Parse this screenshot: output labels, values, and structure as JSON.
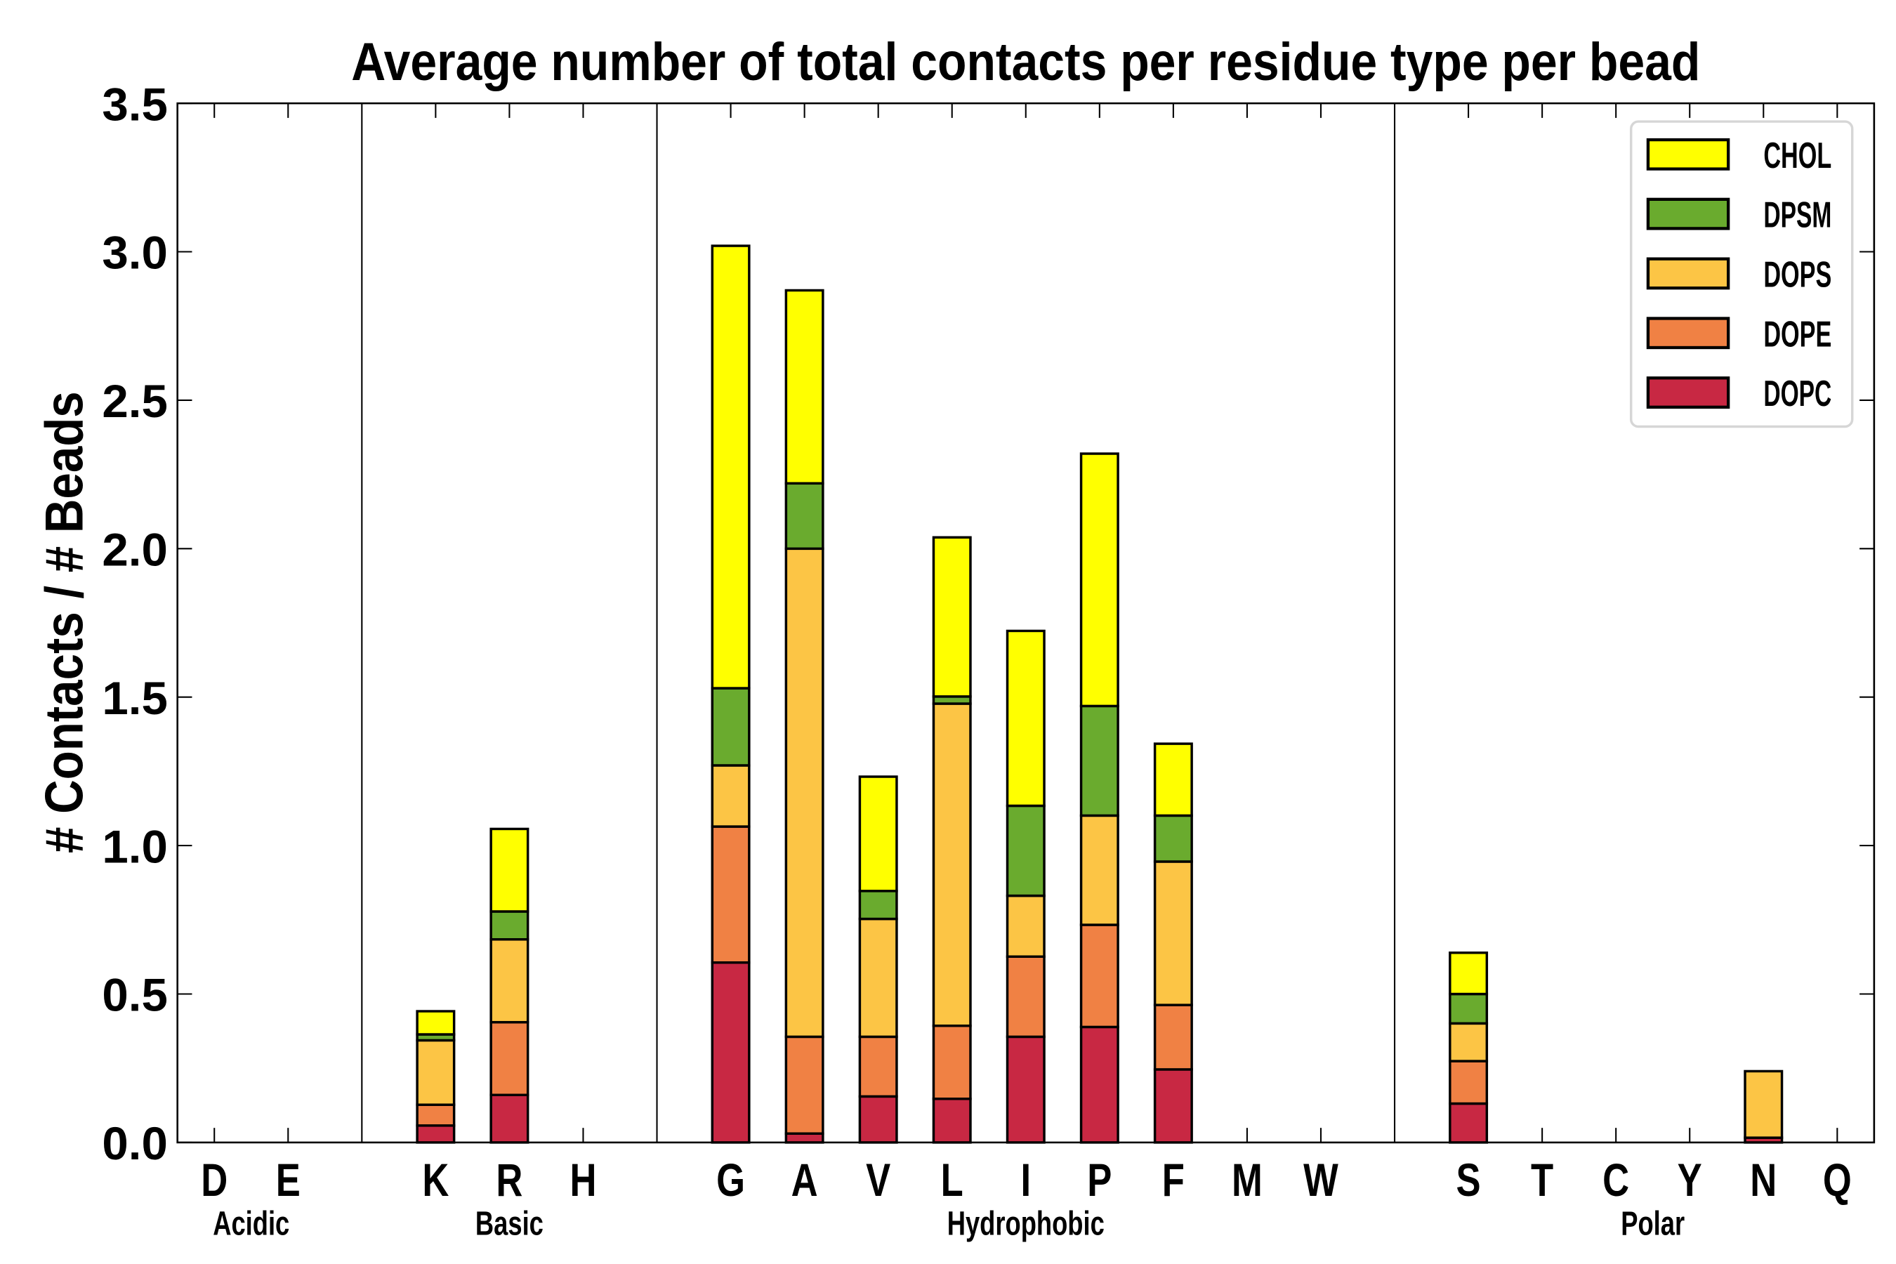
{
  "chart_data": {
    "type": "bar",
    "stacked": true,
    "title": "Average number of total contacts per residue type per bead",
    "xlabel": "",
    "ylabel": "# Contacts / # Beads",
    "ylim": [
      0,
      3.5
    ],
    "yticks": [
      "0.0",
      "0.5",
      "1.0",
      "1.5",
      "2.0",
      "2.5",
      "3.0",
      "3.5"
    ],
    "grid": false,
    "legend_position": "top-right",
    "categories": [
      "D",
      "E",
      "K",
      "R",
      "H",
      "G",
      "A",
      "V",
      "L",
      "I",
      "P",
      "F",
      "M",
      "W",
      "S",
      "T",
      "C",
      "Y",
      "N",
      "Q"
    ],
    "groups": [
      {
        "label": "Acidic",
        "members": [
          "D",
          "E"
        ]
      },
      {
        "label": "Basic",
        "members": [
          "K",
          "R",
          "H"
        ]
      },
      {
        "label": "Hydrophobic",
        "members": [
          "G",
          "A",
          "V",
          "L",
          "I",
          "P",
          "F",
          "M",
          "W"
        ]
      },
      {
        "label": "Polar",
        "members": [
          "S",
          "T",
          "C",
          "Y",
          "N",
          "Q"
        ]
      }
    ],
    "series": [
      {
        "name": "DOPC",
        "color": "#c82843",
        "values": [
          0,
          0,
          0.057,
          0.16,
          0,
          0.606,
          0.03,
          0.155,
          0.147,
          0.356,
          0.389,
          0.246,
          0,
          0,
          0.131,
          0,
          0,
          0,
          0.016,
          0
        ]
      },
      {
        "name": "DOPE",
        "color": "#f08144",
        "values": [
          0,
          0,
          0.07,
          0.245,
          0,
          0.458,
          0.326,
          0.201,
          0.246,
          0.27,
          0.344,
          0.217,
          0,
          0,
          0.143,
          0,
          0,
          0,
          0,
          0
        ]
      },
      {
        "name": "DOPS",
        "color": "#fcc545",
        "values": [
          0,
          0,
          0.217,
          0.279,
          0,
          0.206,
          1.644,
          0.397,
          1.085,
          0.205,
          0.368,
          0.483,
          0,
          0,
          0.127,
          0,
          0,
          0,
          0.224,
          0
        ]
      },
      {
        "name": "DPSM",
        "color": "#6aab2e",
        "values": [
          0,
          0,
          0.02,
          0.094,
          0,
          0.26,
          0.22,
          0.094,
          0.024,
          0.303,
          0.369,
          0.155,
          0,
          0,
          0.099,
          0,
          0,
          0,
          0,
          0
        ]
      },
      {
        "name": "CHOL",
        "color": "#ffff00",
        "values": [
          0,
          0,
          0.078,
          0.278,
          0,
          1.49,
          0.65,
          0.385,
          0.536,
          0.589,
          0.85,
          0.242,
          0,
          0,
          0.139,
          0,
          0,
          0,
          0,
          0
        ]
      }
    ],
    "legend_order": [
      "CHOL",
      "DPSM",
      "DOPS",
      "DOPE",
      "DOPC"
    ]
  }
}
